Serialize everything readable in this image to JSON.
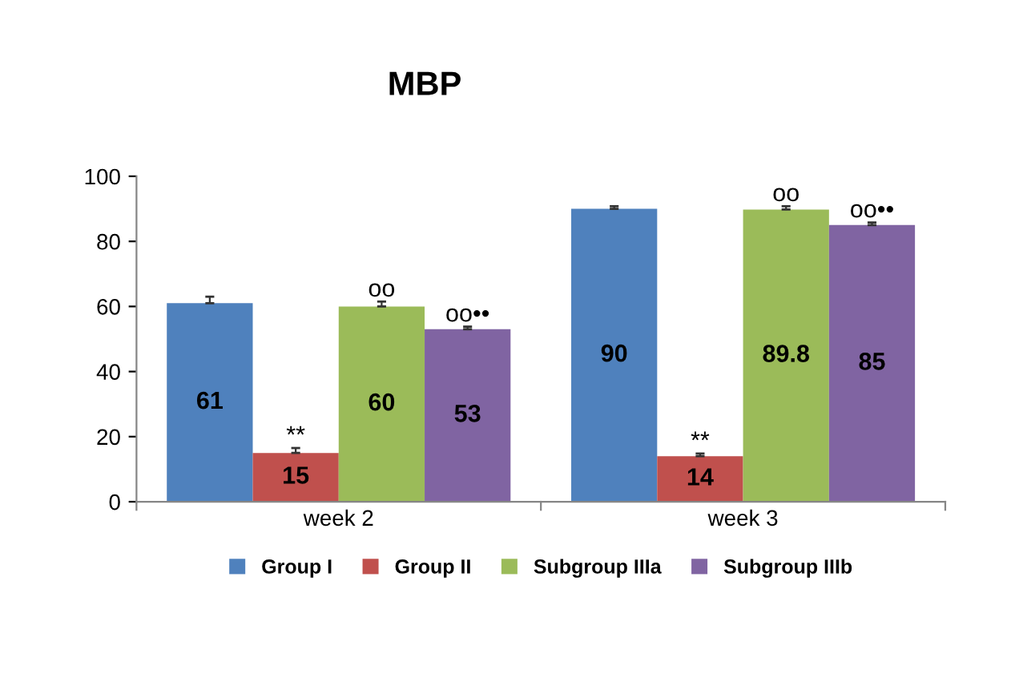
{
  "chart_data": {
    "type": "bar",
    "title": "MBP",
    "categories": [
      "week 2",
      "week 3"
    ],
    "series": [
      {
        "name": "Group I",
        "color": "#4f81bd",
        "values": [
          61,
          90
        ],
        "errors": [
          2,
          0.8
        ]
      },
      {
        "name": "Group II",
        "color": "#c0504d",
        "values": [
          15,
          14
        ],
        "errors": [
          1.5,
          0.8
        ]
      },
      {
        "name": "Subgroup IIIa",
        "color": "#9bbb59",
        "values": [
          60,
          89.8
        ],
        "errors": [
          1.5,
          1
        ]
      },
      {
        "name": "Subgroup IIIb",
        "color": "#8064a2",
        "values": [
          53,
          85
        ],
        "errors": [
          0.8,
          0.8
        ]
      }
    ],
    "annotations": [
      {
        "text": "**",
        "x": "week 2",
        "y": 15
      },
      {
        "text": "oo",
        "x": "week 2",
        "y": 60
      },
      "oo••",
      {
        "text": "**",
        "x": "week 3",
        "y": 14
      },
      {
        "text": "oo",
        "x": "week 3",
        "y": 89.8
      },
      "oo••"
    ],
    "data_labels": true,
    "ylim": [
      0,
      100
    ],
    "yticks": [
      0,
      20,
      40,
      60,
      80,
      100
    ],
    "grid": false,
    "legend": "bottom"
  }
}
